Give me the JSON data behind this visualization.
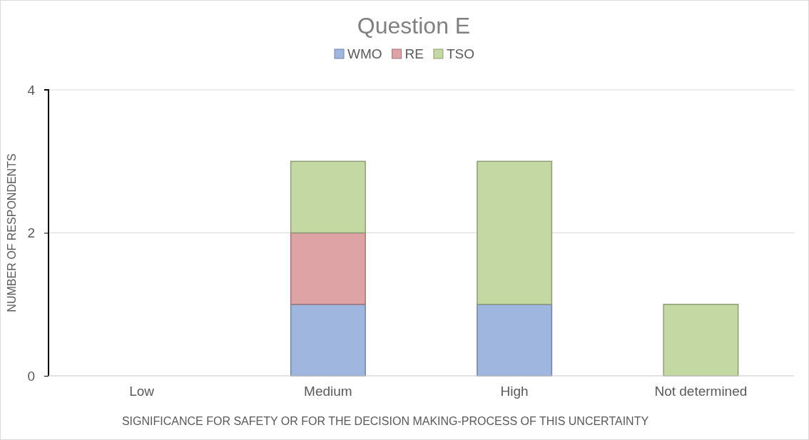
{
  "chart_data": {
    "type": "bar",
    "title": "Question E",
    "xlabel": "SIGNIFICANCE FOR SAFETY OR FOR THE DECISION MAKING-PROCESS OF THIS UNCERTAINTY",
    "ylabel": "NUMBER OF RESPONDENTS",
    "categories": [
      "Low",
      "Medium",
      "High",
      "Not determined"
    ],
    "series": [
      {
        "name": "WMO",
        "color": "#9fb6de",
        "values": [
          0,
          1,
          1,
          0
        ]
      },
      {
        "name": "RE",
        "color": "#dea3a5",
        "values": [
          0,
          1,
          0,
          0
        ]
      },
      {
        "name": "TSO",
        "color": "#c4d8a3",
        "values": [
          0,
          1,
          2,
          1
        ]
      }
    ],
    "stacked": true,
    "ylim": [
      0,
      4
    ],
    "yticks": [
      0,
      2,
      4
    ],
    "grid": "y",
    "legend": "top"
  }
}
